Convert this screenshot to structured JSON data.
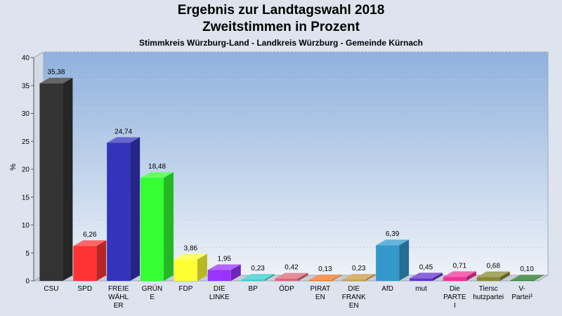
{
  "title": "Ergebnis zur Landtagswahl 2018",
  "subtitle": "Zweitstimmen in Prozent",
  "subtitle2": "Stimmkreis Würzburg-Land - Landkreis Würzburg - Gemeinde Kürnach",
  "chart_data": {
    "type": "bar",
    "title": "Ergebnis zur Landtagswahl 2018",
    "subtitle": "Zweitstimmen in Prozent",
    "ylabel": "%",
    "xlabel": "",
    "ylim": [
      0,
      40
    ],
    "yticks": [
      0,
      5,
      10,
      15,
      20,
      25,
      30,
      35,
      40
    ],
    "grid": true,
    "categories": [
      [
        "CSU"
      ],
      [
        "SPD"
      ],
      [
        "FREIE",
        "WÄHL",
        "ER"
      ],
      [
        "GRÜN",
        "E"
      ],
      [
        "FDP"
      ],
      [
        "DIE",
        "LINKE"
      ],
      [
        "BP"
      ],
      [
        "ÖDP"
      ],
      [
        "PIRAT",
        "EN"
      ],
      [
        "DIE",
        "FRANK",
        "EN"
      ],
      [
        "AfD"
      ],
      [
        "mut"
      ],
      [
        "Die",
        "PARTE",
        "I"
      ],
      [
        "Tiersc",
        "hutzpartei"
      ],
      [
        "V-",
        "Partei³"
      ]
    ],
    "values": [
      35.38,
      6.26,
      24.74,
      18.48,
      3.86,
      1.95,
      0.23,
      0.42,
      0.13,
      0.23,
      6.39,
      0.45,
      0.71,
      0.68,
      0.1
    ],
    "labels": [
      "35,38",
      "6,26",
      "24,74",
      "18,48",
      "3,86",
      "1,95",
      "0,23",
      "0,42",
      "0,13",
      "0,23",
      "6,39",
      "0,45",
      "0,71",
      "0,68",
      "0,10"
    ],
    "colors": [
      "#333333",
      "#ff3333",
      "#3333bb",
      "#33ff33",
      "#ffff33",
      "#9933ff",
      "#33cccc",
      "#dd6677",
      "#ee7722",
      "#cc9944",
      "#3399cc",
      "#6633cc",
      "#ee3399",
      "#888833",
      "#227722"
    ]
  }
}
